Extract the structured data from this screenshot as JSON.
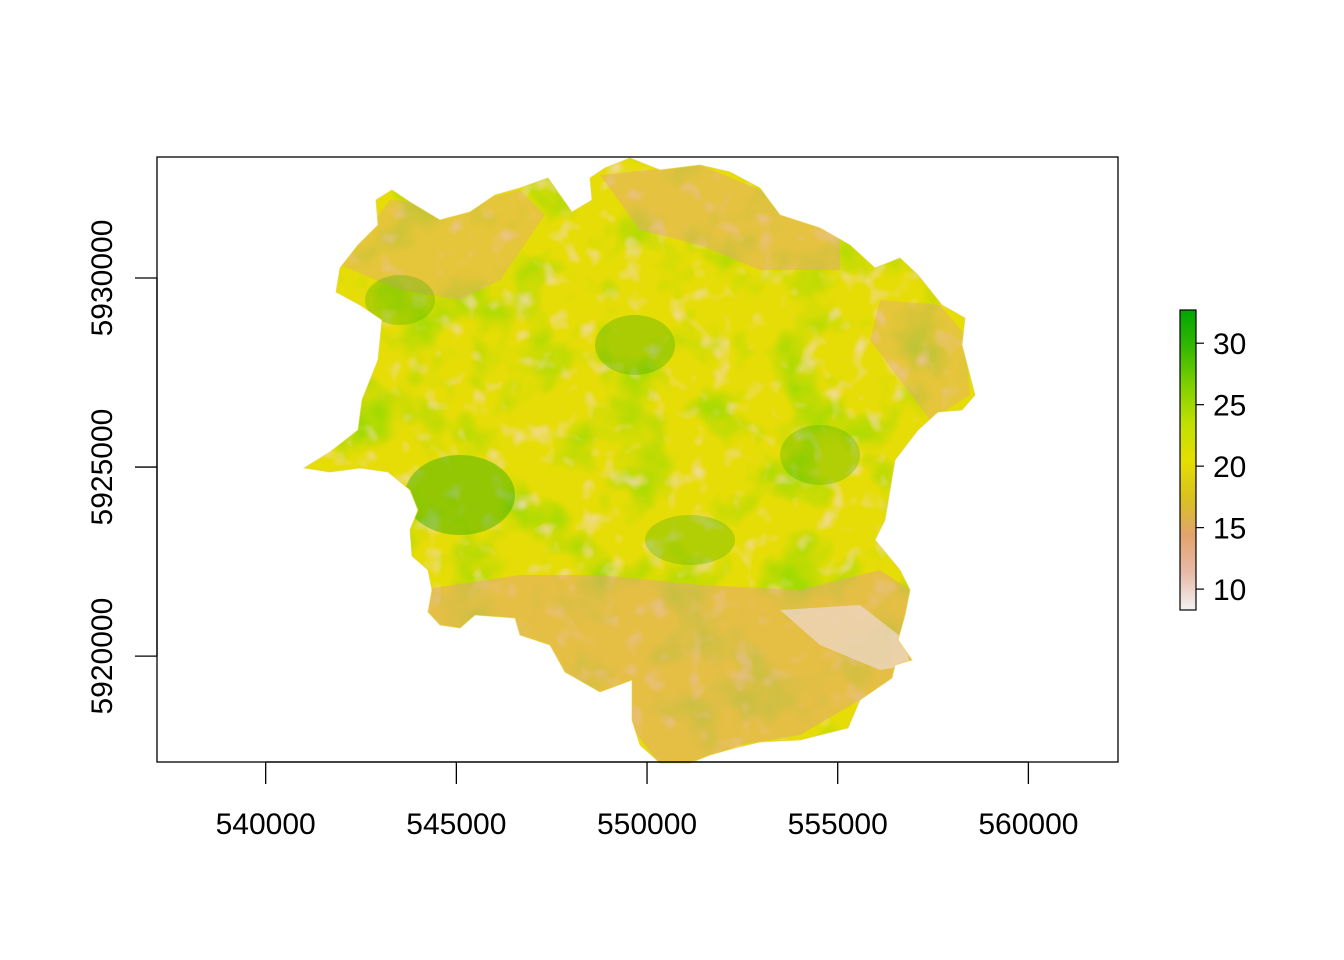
{
  "map": {
    "type": "raster",
    "x_axis": {
      "ticks": [
        540000,
        545000,
        550000,
        555000,
        560000
      ],
      "tick_labels": [
        "540000",
        "545000",
        "550000",
        "555000",
        "560000"
      ],
      "range": [
        537150,
        562350
      ]
    },
    "y_axis": {
      "ticks": [
        5920000,
        5925000,
        5930000
      ],
      "tick_labels": [
        "5920000",
        "5925000",
        "5930000"
      ],
      "range": [
        5917200,
        5933200
      ]
    },
    "legend": {
      "placement": "right",
      "range": [
        8.3,
        32.7
      ],
      "ticks": [
        10,
        15,
        20,
        25,
        30
      ],
      "tick_labels": [
        "10",
        "15",
        "20",
        "25",
        "30"
      ],
      "colors": [
        "#f2f2f2",
        "#e8b9a8",
        "#e2a46c",
        "#d9c220",
        "#e4df00",
        "#bfe000",
        "#7fd000",
        "#35b800",
        "#00a600"
      ]
    },
    "colors": {
      "low": "#e9b8a4",
      "mid": "#e6dc06",
      "high": "#48b300",
      "frame": "#000000"
    }
  }
}
